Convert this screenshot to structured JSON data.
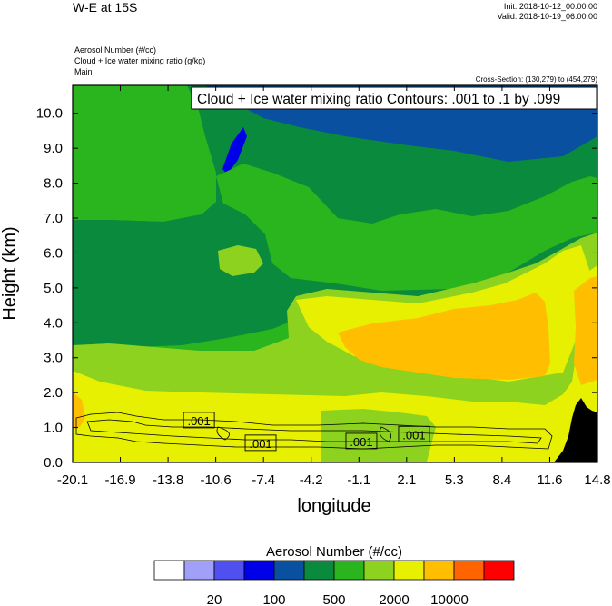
{
  "header": {
    "title": "W-E at 15S",
    "init": "Init: 2018-10-12_00:00:00",
    "valid": "Valid: 2018-10-19_06:00:00",
    "field1": "Aerosol Number   (#/cc)",
    "field2": "Cloud + Ice water mixing ratio   (g/kg)",
    "field3": "Main",
    "cross_section": "Cross-Section: (130,279) to (454,279)"
  },
  "chart_data": {
    "type": "heatmap",
    "title": "W-E at 15S",
    "contour_label": "Cloud + Ice water mixing ratio Contours: .001 to .1 by .099",
    "xlabel": "longitude",
    "ylabel": "Height (km)",
    "xlim": [
      -20.1,
      14.8
    ],
    "ylim": [
      0,
      10.8
    ],
    "x_ticks": [
      "-20.1",
      "-16.9",
      "-13.8",
      "-10.6",
      "-7.4",
      "-4.2",
      "-1.1",
      "2.1",
      "5.3",
      "8.4",
      "11.6",
      "14.8"
    ],
    "y_ticks": [
      "0.0",
      "1.0",
      "2.0",
      "3.0",
      "4.0",
      "5.0",
      "6.0",
      "7.0",
      "8.0",
      "9.0",
      "10.0"
    ],
    "contour_labels": [
      {
        "text": ".001",
        "x": -11.7,
        "y": 1.2
      },
      {
        "text": ".001",
        "x": -7.6,
        "y": 0.55
      },
      {
        "text": ".001",
        "x": -0.9,
        "y": 0.6
      },
      {
        "text": ".001",
        "x": 2.6,
        "y": 0.8
      }
    ],
    "colorbar": {
      "title": "Aerosol Number  (#/cc)",
      "colors": [
        "#ffffff",
        "#a0a0f8",
        "#5050f0",
        "#0000e8",
        "#0a50a0",
        "#0a8a3c",
        "#2ab41e",
        "#8cd21e",
        "#e6f000",
        "#ffbe00",
        "#ff6400",
        "#ff0000"
      ],
      "labels": [
        "20",
        "100",
        "500",
        "2000",
        "10000"
      ]
    }
  }
}
